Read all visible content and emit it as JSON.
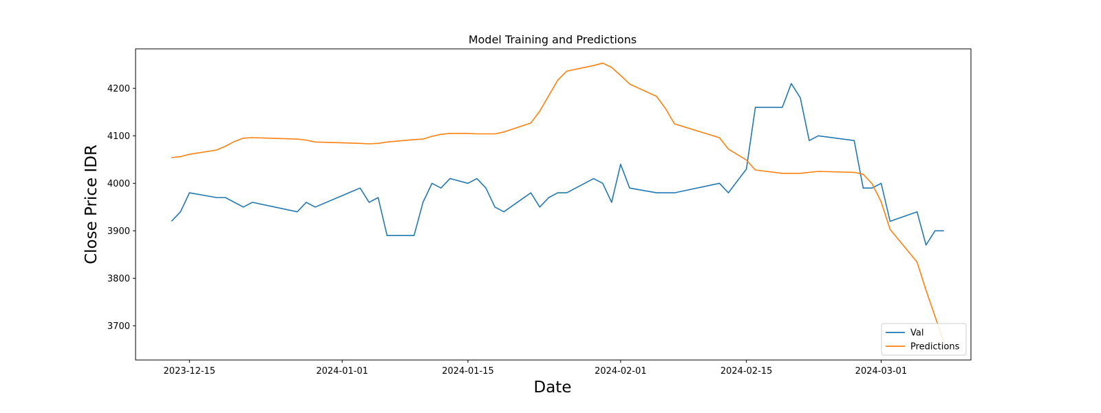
{
  "chart_data": {
    "type": "line",
    "title": "Model Training and Predictions",
    "xlabel": "Date",
    "ylabel": "Close Price IDR",
    "xlim": [
      "2023-12-09",
      "2024-03-11"
    ],
    "ylim": [
      3628,
      4283
    ],
    "x_ticks": [
      "2023-12-15",
      "2024-01-01",
      "2024-01-15",
      "2024-02-01",
      "2024-02-15",
      "2024-03-01"
    ],
    "y_ticks": [
      3700,
      3800,
      3900,
      4000,
      4100,
      4200
    ],
    "grid": false,
    "legend": {
      "position": "lower right",
      "entries": [
        "Val",
        "Predictions"
      ]
    },
    "series": [
      {
        "name": "Val",
        "color": "#1f77b4",
        "points": [
          [
            "2023-12-13",
            3920
          ],
          [
            "2023-12-14",
            3940
          ],
          [
            "2023-12-15",
            3980
          ],
          [
            "2023-12-18",
            3970
          ],
          [
            "2023-12-19",
            3970
          ],
          [
            "2023-12-21",
            3950
          ],
          [
            "2023-12-22",
            3960
          ],
          [
            "2023-12-27",
            3940
          ],
          [
            "2023-12-28",
            3960
          ],
          [
            "2023-12-29",
            3950
          ],
          [
            "2024-01-03",
            3990
          ],
          [
            "2024-01-04",
            3960
          ],
          [
            "2024-01-05",
            3970
          ],
          [
            "2024-01-06",
            3890
          ],
          [
            "2024-01-09",
            3890
          ],
          [
            "2024-01-10",
            3960
          ],
          [
            "2024-01-11",
            4000
          ],
          [
            "2024-01-12",
            3990
          ],
          [
            "2024-01-13",
            4010
          ],
          [
            "2024-01-15",
            4000
          ],
          [
            "2024-01-16",
            4010
          ],
          [
            "2024-01-17",
            3990
          ],
          [
            "2024-01-18",
            3950
          ],
          [
            "2024-01-19",
            3940
          ],
          [
            "2024-01-22",
            3980
          ],
          [
            "2024-01-23",
            3950
          ],
          [
            "2024-01-24",
            3970
          ],
          [
            "2024-01-25",
            3980
          ],
          [
            "2024-01-26",
            3980
          ],
          [
            "2024-01-29",
            4010
          ],
          [
            "2024-01-30",
            4000
          ],
          [
            "2024-01-31",
            3960
          ],
          [
            "2024-02-01",
            4040
          ],
          [
            "2024-02-02",
            3990
          ],
          [
            "2024-02-05",
            3980
          ],
          [
            "2024-02-07",
            3980
          ],
          [
            "2024-02-12",
            4000
          ],
          [
            "2024-02-13",
            3980
          ],
          [
            "2024-02-15",
            4030
          ],
          [
            "2024-02-16",
            4160
          ],
          [
            "2024-02-19",
            4160
          ],
          [
            "2024-02-20",
            4210
          ],
          [
            "2024-02-21",
            4180
          ],
          [
            "2024-02-22",
            4090
          ],
          [
            "2024-02-23",
            4100
          ],
          [
            "2024-02-27",
            4090
          ],
          [
            "2024-02-28",
            3990
          ],
          [
            "2024-02-29",
            3990
          ],
          [
            "2024-03-01",
            4000
          ],
          [
            "2024-03-02",
            3920
          ],
          [
            "2024-03-05",
            3940
          ],
          [
            "2024-03-06",
            3870
          ],
          [
            "2024-03-07",
            3900
          ],
          [
            "2024-03-08",
            3900
          ]
        ]
      },
      {
        "name": "Predictions",
        "color": "#ff7f0e",
        "points": [
          [
            "2023-12-13",
            4054
          ],
          [
            "2023-12-14",
            4056
          ],
          [
            "2023-12-15",
            4061
          ],
          [
            "2023-12-18",
            4070
          ],
          [
            "2023-12-19",
            4078
          ],
          [
            "2023-12-20",
            4088
          ],
          [
            "2023-12-21",
            4095
          ],
          [
            "2023-12-22",
            4096
          ],
          [
            "2023-12-27",
            4093
          ],
          [
            "2023-12-28",
            4091
          ],
          [
            "2023-12-29",
            4087
          ],
          [
            "2024-01-03",
            4084
          ],
          [
            "2024-01-04",
            4083
          ],
          [
            "2024-01-05",
            4084
          ],
          [
            "2024-01-06",
            4087
          ],
          [
            "2024-01-09",
            4092
          ],
          [
            "2024-01-10",
            4093
          ],
          [
            "2024-01-11",
            4099
          ],
          [
            "2024-01-12",
            4103
          ],
          [
            "2024-01-13",
            4105
          ],
          [
            "2024-01-15",
            4105
          ],
          [
            "2024-01-16",
            4104
          ],
          [
            "2024-01-18",
            4104
          ],
          [
            "2024-01-19",
            4108
          ],
          [
            "2024-01-22",
            4127
          ],
          [
            "2024-01-23",
            4152
          ],
          [
            "2024-01-25",
            4217
          ],
          [
            "2024-01-26",
            4236
          ],
          [
            "2024-01-29",
            4248
          ],
          [
            "2024-01-30",
            4253
          ],
          [
            "2024-01-31",
            4244
          ],
          [
            "2024-02-01",
            4227
          ],
          [
            "2024-02-02",
            4209
          ],
          [
            "2024-02-05",
            4183
          ],
          [
            "2024-02-06",
            4157
          ],
          [
            "2024-02-07",
            4125
          ],
          [
            "2024-02-12",
            4096
          ],
          [
            "2024-02-13",
            4072
          ],
          [
            "2024-02-15",
            4049
          ],
          [
            "2024-02-16",
            4028
          ],
          [
            "2024-02-19",
            4021
          ],
          [
            "2024-02-21",
            4021
          ],
          [
            "2024-02-23",
            4025
          ],
          [
            "2024-02-27",
            4023
          ],
          [
            "2024-02-28",
            4019
          ],
          [
            "2024-02-29",
            3999
          ],
          [
            "2024-03-01",
            3961
          ],
          [
            "2024-03-02",
            3903
          ],
          [
            "2024-03-05",
            3834
          ],
          [
            "2024-03-06",
            3775
          ],
          [
            "2024-03-08",
            3665
          ]
        ]
      }
    ]
  }
}
